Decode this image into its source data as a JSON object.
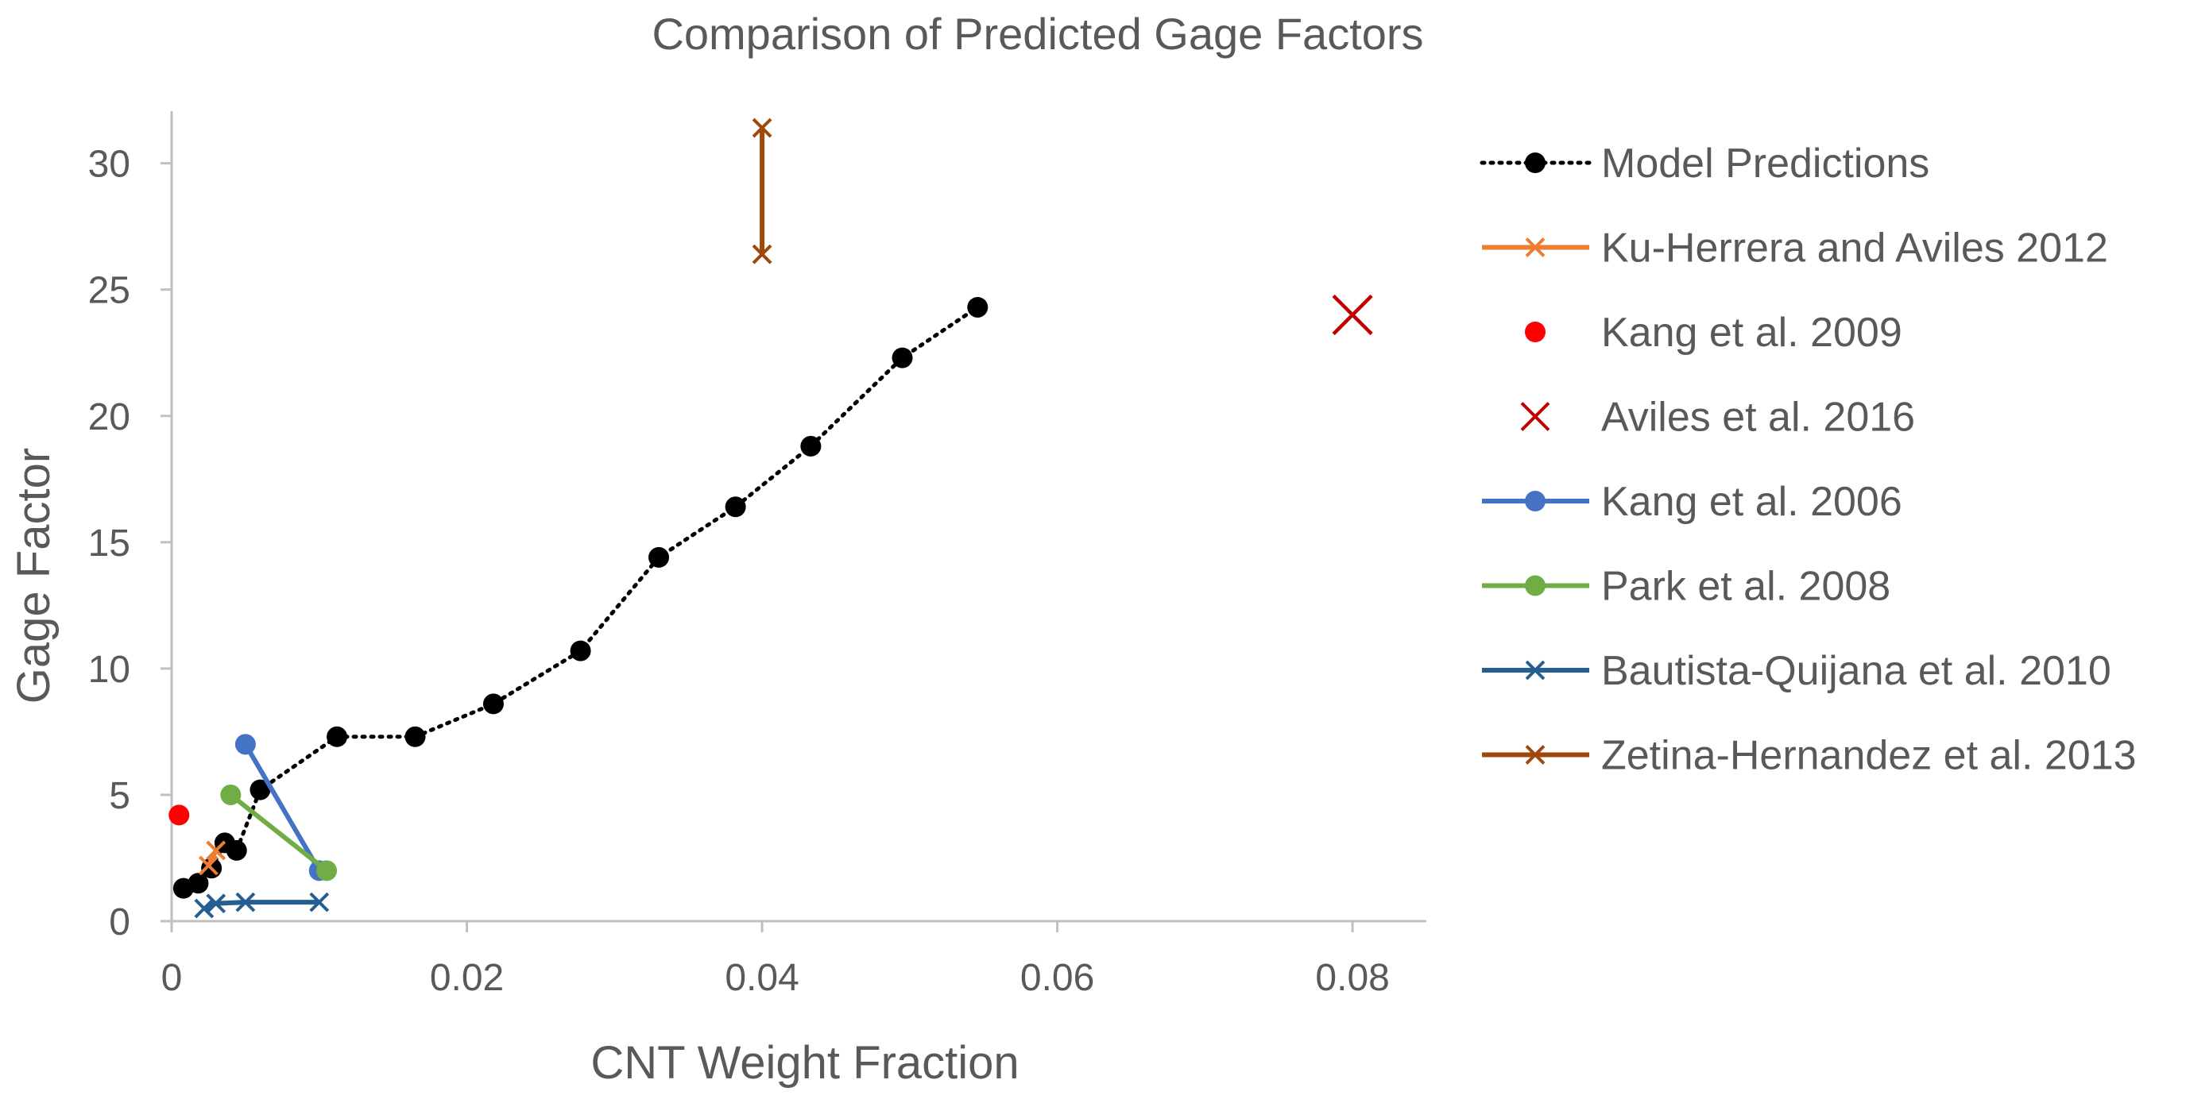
{
  "chart_data": {
    "type": "scatter",
    "title": "Comparison of Predicted Gage Factors",
    "xlabel": "CNT Weight Fraction",
    "ylabel": "Gage Factor",
    "xlim": [
      0,
      0.085
    ],
    "ylim": [
      0,
      32
    ],
    "xticks": [
      0,
      0.02,
      0.04,
      0.06,
      0.08
    ],
    "xtick_labels": [
      "0",
      "0.02",
      "0.04",
      "0.06",
      "0.08"
    ],
    "yticks": [
      0,
      5,
      10,
      15,
      20,
      25,
      30
    ],
    "ytick_labels": [
      "0",
      "5",
      "10",
      "15",
      "20",
      "25",
      "30"
    ],
    "grid": false,
    "legend_position": "right",
    "series": [
      {
        "name": "Model Predictions",
        "color": "#000000",
        "line": "dotted",
        "marker": "circle",
        "x": [
          0.0008,
          0.0018,
          0.0027,
          0.0036,
          0.0044,
          0.006,
          0.0112,
          0.0165,
          0.0218,
          0.0277,
          0.033,
          0.0382,
          0.0433,
          0.0495,
          0.0546
        ],
        "y": [
          1.3,
          1.5,
          2.1,
          3.1,
          2.8,
          5.2,
          7.3,
          7.3,
          8.6,
          10.7,
          14.4,
          16.4,
          18.8,
          22.3,
          24.3
        ]
      },
      {
        "name": "Ku-Herrera and Aviles 2012",
        "color": "#ed7d31",
        "line": "solid",
        "marker": "x",
        "x": [
          0.0025,
          0.003
        ],
        "y": [
          2.2,
          2.8
        ]
      },
      {
        "name": "Kang et al. 2009",
        "color": "#ff0000",
        "line": "none",
        "marker": "circle",
        "x": [
          0.0005
        ],
        "y": [
          4.2
        ]
      },
      {
        "name": "Aviles et al. 2016",
        "color": "#c00000",
        "line": "none",
        "marker": "x-large",
        "x": [
          0.08
        ],
        "y": [
          24.0
        ]
      },
      {
        "name": "Kang et al. 2006",
        "color": "#4472c4",
        "line": "solid",
        "marker": "circle",
        "x": [
          0.005,
          0.01
        ],
        "y": [
          7.0,
          2.0
        ]
      },
      {
        "name": "Park et al. 2008",
        "color": "#70ad47",
        "line": "solid",
        "marker": "circle",
        "x": [
          0.004,
          0.0105
        ],
        "y": [
          5.0,
          2.0
        ]
      },
      {
        "name": "Bautista-Quijana et al. 2010",
        "color": "#255e91",
        "line": "solid",
        "marker": "x",
        "x": [
          0.0022,
          0.003,
          0.005,
          0.01
        ],
        "y": [
          0.5,
          0.7,
          0.75,
          0.75
        ]
      },
      {
        "name": "Zetina-Hernandez et al. 2013",
        "color": "#9e480e",
        "line": "solid",
        "marker": "x",
        "x": [
          0.04,
          0.04
        ],
        "y": [
          31.4,
          26.4
        ]
      }
    ]
  }
}
